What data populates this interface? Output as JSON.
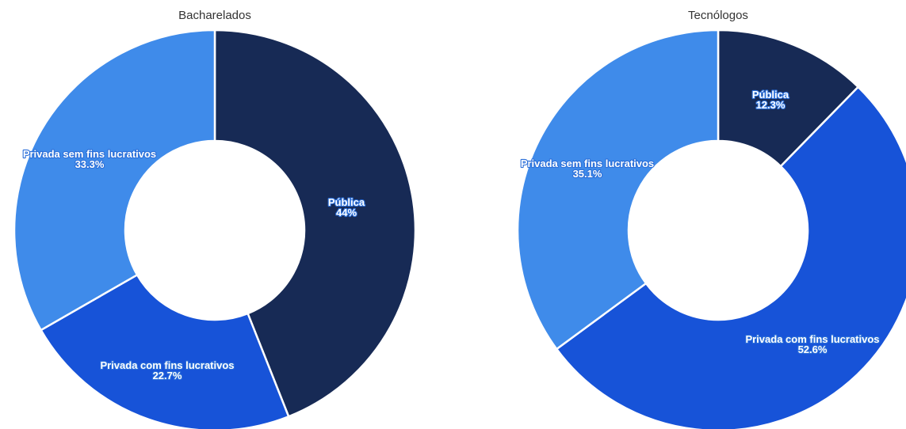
{
  "chart_data": [
    {
      "type": "pie",
      "variant": "donut",
      "title": "Bacharelados",
      "slices": [
        {
          "label": "Pública",
          "value": 44,
          "value_label": "44%",
          "color": "#172a55"
        },
        {
          "label": "Privada com fins lucrativos",
          "value": 22.7,
          "value_label": "22.7%",
          "color": "#1753d8"
        },
        {
          "label": "Privada sem fins lucrativos",
          "value": 33.3,
          "value_label": "33.3%",
          "color": "#3f8bea"
        }
      ]
    },
    {
      "type": "pie",
      "variant": "donut",
      "title": "Tecnólogos",
      "slices": [
        {
          "label": "Pública",
          "value": 12.3,
          "value_label": "12.3%",
          "color": "#172a55"
        },
        {
          "label": "Privada com fins lucrativos",
          "value": 52.6,
          "value_label": "52.6%",
          "color": "#1753d8"
        },
        {
          "label": "Privada sem fins lucrativos",
          "value": 35.1,
          "value_label": "35.1%",
          "color": "#3f8bea"
        }
      ]
    }
  ]
}
